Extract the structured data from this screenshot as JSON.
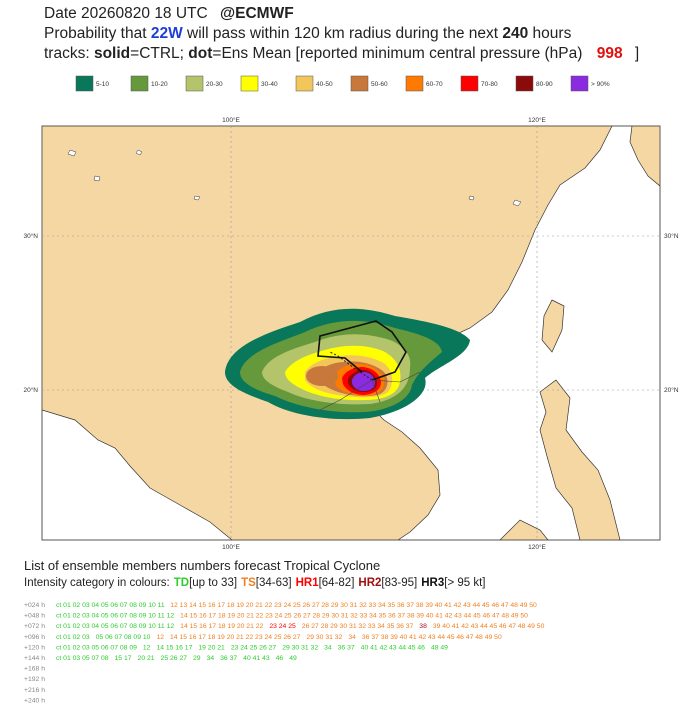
{
  "header": {
    "date": "Date 20260820 18 UTC",
    "source": "@ECMWF",
    "line2": [
      "Probability that",
      "22W",
      "will pass within 120 km radius during the next",
      "240",
      "hours"
    ],
    "line3": [
      "tracks:",
      "solid",
      "=CTRL;",
      "dot",
      "=Ens Mean [reported minimum central pressure (hPa)",
      "998",
      "]"
    ]
  },
  "legend": [
    {
      "label": "5-10",
      "color": "#08775a"
    },
    {
      "label": "10-20",
      "color": "#66983c"
    },
    {
      "label": "20-30",
      "color": "#b3c46a"
    },
    {
      "label": "30-40",
      "color": "#ffff00"
    },
    {
      "label": "40-50",
      "color": "#f2c65a"
    },
    {
      "label": "50-60",
      "color": "#c8783a"
    },
    {
      "label": "60-70",
      "color": "#ff7a00"
    },
    {
      "label": "70-80",
      "color": "#ff0000"
    },
    {
      "label": "80-90",
      "color": "#8b0a0a"
    },
    {
      "label": "> 90%",
      "color": "#8a2be2"
    }
  ],
  "map": {
    "lon_labels": [
      "100°E",
      "120°E"
    ],
    "lat_labels": [
      "30°N",
      "20°N"
    ]
  },
  "members": {
    "title": "List of ensemble members numbers forecast Tropical Cyclone",
    "intro": "Intensity category in colours:",
    "categories": [
      {
        "name": "TD",
        "range": "[up to 33]",
        "color": "#2ecc2e"
      },
      {
        "name": "TS",
        "range": "[34-63]",
        "color": "#f08020"
      },
      {
        "name": "HR1",
        "range": "[64-82]",
        "color": "#ff0000"
      },
      {
        "name": "HR2",
        "range": "[83-95]",
        "color": "#a01010"
      },
      {
        "name": "HR3",
        "range": "[> 95 kt]",
        "color": "#111111"
      }
    ],
    "rows": [
      {
        "hour": "+024 h",
        "segments": [
          {
            "text": "ct 01 02 03 04 05 06 07 08 09 10 11",
            "color": "#2ecc2e"
          },
          {
            "text": "12 13 14 15 16 17 18 19 20 21 22 23 24 25 26 27 28 29 30 31 32 33 34 35 36 37 38 39 40 41 42 43 44 45 46 47 48 49 50",
            "color": "#f08020"
          }
        ]
      },
      {
        "hour": "+048 h",
        "segments": [
          {
            "text": "ct 01 02 03 04 05 06 07 08 09 10 11 12",
            "color": "#2ecc2e"
          },
          {
            "text": "14 15 16 17 18 19 20 21 22 23 24 25 26 27 28 29 30 31 32 33 34 35 36 37 38 39 40 41 42 43 44 45 46 47 48 49 50",
            "color": "#f08020"
          }
        ]
      },
      {
        "hour": "+072 h",
        "segments": [
          {
            "text": "ct 01 02 03 04 05 06 07 08 09 10 11 12",
            "color": "#2ecc2e"
          },
          {
            "text": "14 15 16 17 18 19 20 21 22",
            "color": "#f08020"
          },
          {
            "text": "23 24 25",
            "color": "#ff0000"
          },
          {
            "text": "26 27 28 29 30 31 32 33 34 35 36 37",
            "color": "#f08020"
          },
          {
            "text": "38",
            "color": "#a01010"
          },
          {
            "text": "39 40 41 42 43 44 45 46 47 48 49 50",
            "color": "#f08020"
          }
        ]
      },
      {
        "hour": "+096 h",
        "segments": [
          {
            "text": "ct 01 02 03",
            "color": "#2ecc2e"
          },
          {
            "text": "05 06 07 08 09 10",
            "color": "#2ecc2e"
          },
          {
            "text": "12",
            "color": "#f08020"
          },
          {
            "text": "14 15 16 17 18 19 20 21 22 23 24 25 26 27",
            "color": "#f08020"
          },
          {
            "text": "29 30 31 32",
            "color": "#f08020"
          },
          {
            "text": "34",
            "color": "#f08020"
          },
          {
            "text": "36 37 38 39 40 41 42 43 44 45 46 47 48 49 50",
            "color": "#f08020"
          }
        ]
      },
      {
        "hour": "+120 h",
        "segments": [
          {
            "text": "ct 01 02 03 05 06 07 08 09",
            "color": "#2ecc2e"
          },
          {
            "text": "12",
            "color": "#2ecc2e"
          },
          {
            "text": "14 15 16 17",
            "color": "#2ecc2e"
          },
          {
            "text": "19 20 21",
            "color": "#2ecc2e"
          },
          {
            "text": "23 24 25 26 27",
            "color": "#2ecc2e"
          },
          {
            "text": "29 30 31 32",
            "color": "#2ecc2e"
          },
          {
            "text": "34",
            "color": "#2ecc2e"
          },
          {
            "text": "36 37",
            "color": "#2ecc2e"
          },
          {
            "text": "40 41 42 43 44 45 46",
            "color": "#2ecc2e"
          },
          {
            "text": "48 49",
            "color": "#2ecc2e"
          }
        ]
      },
      {
        "hour": "+144 h",
        "segments": [
          {
            "text": "ct 01 03 05 07 08",
            "color": "#2ecc2e"
          },
          {
            "text": "15 17",
            "color": "#2ecc2e"
          },
          {
            "text": "20 21",
            "color": "#2ecc2e"
          },
          {
            "text": "25 26 27",
            "color": "#2ecc2e"
          },
          {
            "text": "29",
            "color": "#2ecc2e"
          },
          {
            "text": "34",
            "color": "#2ecc2e"
          },
          {
            "text": "36 37",
            "color": "#2ecc2e"
          },
          {
            "text": "40 41 43",
            "color": "#2ecc2e"
          },
          {
            "text": "46",
            "color": "#2ecc2e"
          },
          {
            "text": "49",
            "color": "#2ecc2e"
          }
        ]
      },
      {
        "hour": "+168 h",
        "segments": []
      },
      {
        "hour": "+192 h",
        "segments": []
      },
      {
        "hour": "+216 h",
        "segments": []
      },
      {
        "hour": "+240 h",
        "segments": []
      }
    ]
  }
}
